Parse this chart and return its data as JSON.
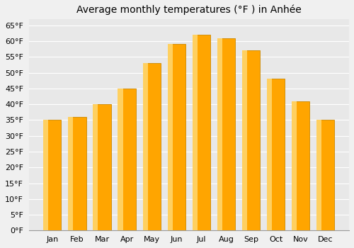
{
  "title": "Average monthly temperatures (°F ) in Anhée",
  "months": [
    "Jan",
    "Feb",
    "Mar",
    "Apr",
    "May",
    "Jun",
    "Jul",
    "Aug",
    "Sep",
    "Oct",
    "Nov",
    "Dec"
  ],
  "values": [
    35,
    36,
    40,
    45,
    53,
    59,
    62,
    61,
    57,
    48,
    41,
    35
  ],
  "bar_color_main": "#FFA500",
  "bar_color_left": "#FFD060",
  "bar_color_edge": "#CC8800",
  "background_color": "#f0f0f0",
  "plot_bg_color": "#e8e8e8",
  "grid_color": "#ffffff",
  "ylim": [
    0,
    67
  ],
  "yticks": [
    0,
    5,
    10,
    15,
    20,
    25,
    30,
    35,
    40,
    45,
    50,
    55,
    60,
    65
  ],
  "title_fontsize": 10,
  "tick_fontsize": 8
}
